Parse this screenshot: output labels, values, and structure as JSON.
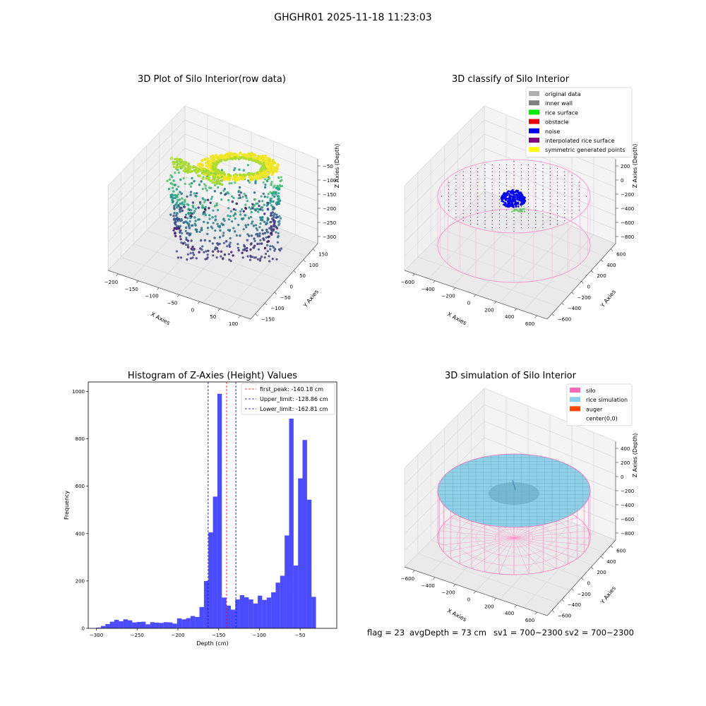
{
  "figure": {
    "suptitle": "GHGHR01 2025-11-18 11:23:03",
    "footer": {
      "flag": "flag = 23",
      "avg_depth": "avgDepth = 73 cm",
      "sv1": "sv1 = 700~2300",
      "sv2": "sv2 = 700~2300"
    }
  },
  "chart_data": [
    {
      "type": "scatter",
      "projection": "3d",
      "title": "3D Plot of Silo Interior(row data)",
      "xlabel": "X Axies",
      "ylabel": "Y Axies",
      "zlabel": "Z Axies (Depth)",
      "xticks": [
        "−200",
        "−150",
        "−100",
        "−50",
        "0",
        "50",
        "100"
      ],
      "yticks": [
        "−150",
        "−100",
        "−50",
        "0",
        "50",
        "100",
        "150"
      ],
      "zticks": [
        "−50",
        "−100",
        "−150",
        "−200",
        "−250",
        "−300"
      ],
      "xlim": [
        -200,
        130
      ],
      "ylim": [
        -150,
        150
      ],
      "zlim": [
        -320,
        -30
      ],
      "colormap": "viridis (by depth)",
      "grid": true
    },
    {
      "type": "scatter",
      "projection": "3d",
      "title": "3D classify of Silo Interior",
      "xlabel": "X Axies",
      "ylabel": "Y Axies",
      "zlabel": "Z Axies (Depth)",
      "xticks": [
        "−600",
        "−400",
        "−200",
        "0",
        "200",
        "400",
        "600"
      ],
      "yticks": [
        "−600",
        "−400",
        "−200",
        "0",
        "200",
        "400",
        "600"
      ],
      "zticks": [
        "200",
        "0",
        "−200",
        "−400",
        "−600",
        "−800"
      ],
      "xlim": [
        -700,
        700
      ],
      "ylim": [
        -700,
        700
      ],
      "zlim": [
        -900,
        300
      ],
      "legend_position": "top-right",
      "legend": [
        {
          "label": "original data",
          "color": "#b0b0b0"
        },
        {
          "label": "inner wall",
          "color": "#808080"
        },
        {
          "label": "rice surface",
          "color": "#00ee00"
        },
        {
          "label": "obstacle",
          "color": "#ee0000"
        },
        {
          "label": "noise",
          "color": "#0000ee"
        },
        {
          "label": "interpolated rice surface",
          "color": "#800080"
        },
        {
          "label": "symmetric generated points",
          "color": "#ffff00"
        }
      ],
      "grid": true
    },
    {
      "type": "bar",
      "title": "Histogram of Z-Axies (Height) Values",
      "xlabel": "Depth (cm)",
      "ylabel": "Frequency",
      "xlim": [
        -310,
        -5
      ],
      "ylim": [
        0,
        1040
      ],
      "xticks": [
        -300,
        -250,
        -200,
        -150,
        -100,
        -50
      ],
      "yticks": [
        0,
        200,
        400,
        600,
        800,
        1000
      ],
      "bar_color": "#0000ff",
      "bin_start": -300,
      "bin_width": 5.5,
      "values": [
        3,
        10,
        18,
        28,
        36,
        30,
        38,
        34,
        25,
        27,
        28,
        17,
        26,
        24,
        23,
        26,
        25,
        20,
        42,
        38,
        43,
        52,
        48,
        90,
        200,
        405,
        556,
        990,
        130,
        96,
        79,
        122,
        140,
        131,
        122,
        105,
        138,
        120,
        130,
        152,
        193,
        222,
        392,
        885,
        265,
        633,
        795,
        543,
        133
      ],
      "vlines": [
        {
          "label": "first_peak: -140.18 cm",
          "x": -140.18,
          "color": "#ff0000"
        },
        {
          "label": "Upper_limit: -128.86 cm",
          "x": -128.86,
          "color": "#0000aa"
        },
        {
          "label": "Lower_limit: -162.81 cm",
          "x": -162.81,
          "color": "#0000aa"
        }
      ],
      "legend_position": "top-right",
      "grid": false
    },
    {
      "type": "scatter",
      "projection": "3d",
      "title": "3D simulation of Silo Interior",
      "xlabel": "X Axies",
      "ylabel": "Y Axies",
      "zlabel": "Z Axies (Depth)",
      "xticks": [
        "−600",
        "−400",
        "−200",
        "0",
        "200",
        "400",
        "600"
      ],
      "yticks": [
        "−600",
        "−400",
        "−200",
        "0",
        "200",
        "400",
        "600"
      ],
      "zticks": [
        "400",
        "200",
        "0",
        "−200",
        "−400",
        "−600",
        "−800"
      ],
      "xlim": [
        -700,
        700
      ],
      "ylim": [
        -700,
        700
      ],
      "zlim": [
        -900,
        500
      ],
      "legend_position": "top-right",
      "legend": [
        {
          "label": "silo",
          "color": "#ff69b4"
        },
        {
          "label": "rice simulation",
          "color": "#87ceeb"
        },
        {
          "label": "auger",
          "color": "#ff4500"
        },
        {
          "label": "center(0,0)",
          "color": "none"
        }
      ],
      "grid": true
    }
  ]
}
